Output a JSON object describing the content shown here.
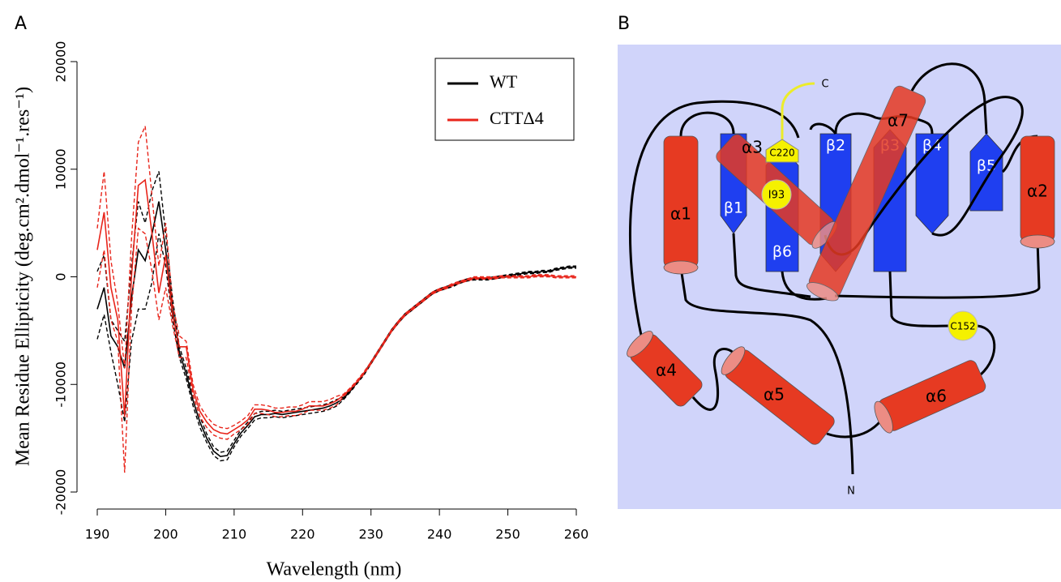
{
  "panel_labels": [
    "A",
    "B"
  ],
  "chart_data": {
    "type": "line",
    "xlabel": "Wavelength (nm)",
    "ylabel": "Mean Residue Ellipticity (deg.cm².dmol⁻¹.res⁻¹)",
    "x": [
      190,
      191,
      192,
      193,
      194,
      195,
      196,
      197,
      198,
      199,
      200,
      201,
      202,
      203,
      204,
      205,
      206,
      207,
      208,
      209,
      210,
      211,
      212,
      213,
      214,
      215,
      216,
      217,
      218,
      219,
      220,
      221,
      222,
      223,
      224,
      225,
      226,
      227,
      228,
      229,
      230,
      231,
      232,
      233,
      234,
      235,
      236,
      237,
      238,
      239,
      240,
      241,
      242,
      243,
      244,
      245,
      246,
      247,
      248,
      249,
      250,
      251,
      252,
      253,
      254,
      255,
      256,
      257,
      258,
      259,
      260
    ],
    "series": [
      {
        "name": "WT",
        "color": "#000000",
        "values": [
          -3000,
          -1000,
          -5500,
          -6500,
          -8500,
          -2000,
          2500,
          1500,
          4000,
          7000,
          2500,
          -3000,
          -7000,
          -9000,
          -11500,
          -13500,
          -15000,
          -16200,
          -16700,
          -16600,
          -15500,
          -14500,
          -13800,
          -13000,
          -12800,
          -12800,
          -12700,
          -12800,
          -12700,
          -12600,
          -12500,
          -12400,
          -12300,
          -12200,
          -12000,
          -11700,
          -11300,
          -10600,
          -9800,
          -9000,
          -8000,
          -7000,
          -6000,
          -5000,
          -4200,
          -3500,
          -3000,
          -2500,
          -2000,
          -1500,
          -1200,
          -1000,
          -800,
          -500,
          -300,
          -200,
          -200,
          -200,
          -100,
          0,
          100,
          200,
          300,
          400,
          400,
          500,
          500,
          700,
          800,
          900,
          900
        ],
        "upper": [
          500,
          2000,
          -4000,
          -5000,
          -6000,
          1000,
          7000,
          5000,
          8000,
          9800,
          4000,
          -2000,
          -6500,
          -8500,
          -11000,
          -13000,
          -14600,
          -15800,
          -16300,
          -16200,
          -15200,
          -14200,
          -13500,
          -12700,
          -12500,
          -12500,
          -12400,
          -12500,
          -12400,
          -12300,
          -12200,
          -12100,
          -12000,
          -11900,
          -11700,
          -11400,
          -11200,
          -10500,
          -9700,
          -8900,
          -7900,
          -6900,
          -5900,
          -4900,
          -4100,
          -3400,
          -2900,
          -2400,
          -1900,
          -1400,
          -1100,
          -900,
          -700,
          -400,
          -200,
          -100,
          -100,
          -100,
          0,
          100,
          200,
          300,
          400,
          500,
          500,
          600,
          600,
          800,
          900,
          1000,
          1000
        ],
        "lower": [
          -5800,
          -3500,
          -7000,
          -10000,
          -13500,
          -6000,
          -3000,
          -3000,
          -500,
          4000,
          1000,
          -4000,
          -7500,
          -9500,
          -12000,
          -14000,
          -15400,
          -16600,
          -17100,
          -17000,
          -15800,
          -14800,
          -14100,
          -13300,
          -13100,
          -13100,
          -13000,
          -13100,
          -13000,
          -12900,
          -12800,
          -12700,
          -12600,
          -12500,
          -12300,
          -12000,
          -11400,
          -10700,
          -9900,
          -9100,
          -8100,
          -7100,
          -6100,
          -5100,
          -4300,
          -3600,
          -3100,
          -2600,
          -2100,
          -1600,
          -1300,
          -1100,
          -900,
          -600,
          -400,
          -300,
          -300,
          -300,
          -200,
          -100,
          0,
          100,
          200,
          300,
          300,
          400,
          400,
          600,
          700,
          800,
          800
        ]
      },
      {
        "name": "CTTΔ4",
        "color": "#e8251b",
        "values": [
          2500,
          6000,
          -1000,
          -4000,
          -13000,
          0,
          8500,
          9000,
          4000,
          -1500,
          2000,
          -3500,
          -6500,
          -6500,
          -10500,
          -12500,
          -13500,
          -14200,
          -14500,
          -14600,
          -14200,
          -13800,
          -13300,
          -12300,
          -12300,
          -12400,
          -12600,
          -12600,
          -12500,
          -12500,
          -12300,
          -12000,
          -12000,
          -12000,
          -11800,
          -11500,
          -11000,
          -10400,
          -9700,
          -8900,
          -8000,
          -7000,
          -6000,
          -5000,
          -4200,
          -3500,
          -3000,
          -2500,
          -2000,
          -1500,
          -1200,
          -1000,
          -700,
          -500,
          -300,
          -100,
          -100,
          -100,
          -100,
          0,
          0,
          0,
          0,
          0,
          100,
          100,
          100,
          0,
          0,
          0,
          0
        ],
        "upper": [
          4500,
          9800,
          1500,
          -2500,
          -8500,
          3500,
          12500,
          14000,
          7500,
          1000,
          5000,
          -2500,
          -5500,
          -6000,
          -10000,
          -12000,
          -13000,
          -13700,
          -14000,
          -14100,
          -13800,
          -13400,
          -12900,
          -11900,
          -11900,
          -12000,
          -12200,
          -12200,
          -12100,
          -12100,
          -11900,
          -11600,
          -11600,
          -11600,
          -11400,
          -11100,
          -10900,
          -10300,
          -9600,
          -8800,
          -7900,
          -6900,
          -5900,
          -4900,
          -4100,
          -3400,
          -2900,
          -2400,
          -1900,
          -1400,
          -1100,
          -900,
          -600,
          -400,
          -200,
          0,
          0,
          0,
          0,
          100,
          100,
          100,
          100,
          100,
          200,
          200,
          200,
          100,
          100,
          100,
          100
        ],
        "lower": [
          -1000,
          2500,
          -4000,
          -6000,
          -18200,
          -3000,
          4500,
          4000,
          500,
          -4000,
          -1000,
          -4500,
          -7500,
          -7500,
          -11000,
          -13000,
          -14000,
          -14700,
          -15000,
          -15100,
          -14600,
          -14200,
          -13700,
          -12700,
          -12700,
          -12800,
          -13000,
          -13000,
          -12900,
          -12900,
          -12700,
          -12400,
          -12400,
          -12400,
          -12200,
          -11900,
          -11100,
          -10500,
          -9800,
          -9000,
          -8100,
          -7100,
          -6100,
          -5100,
          -4300,
          -3600,
          -3100,
          -2600,
          -2100,
          -1600,
          -1300,
          -1100,
          -800,
          -600,
          -400,
          -200,
          -200,
          -200,
          -200,
          -100,
          -100,
          -100,
          -100,
          -100,
          0,
          0,
          0,
          -100,
          -100,
          -100,
          -100
        ]
      }
    ],
    "xlim": [
      190,
      260
    ],
    "xticks": [
      190,
      200,
      210,
      220,
      230,
      240,
      250,
      260
    ],
    "ylim": [
      -20000,
      20000
    ],
    "yticks": [
      -20000,
      -10000,
      0,
      10000,
      20000
    ],
    "legend": "top-right"
  },
  "diagram": {
    "helices": [
      "α1",
      "α2",
      "α3",
      "α4",
      "α5",
      "α6",
      "α7"
    ],
    "strands": [
      "β1",
      "β2",
      "β3",
      "β4",
      "β5",
      "β6"
    ],
    "residues": [
      "C220",
      "I93",
      "C152"
    ],
    "termini": [
      "C",
      "N"
    ]
  }
}
